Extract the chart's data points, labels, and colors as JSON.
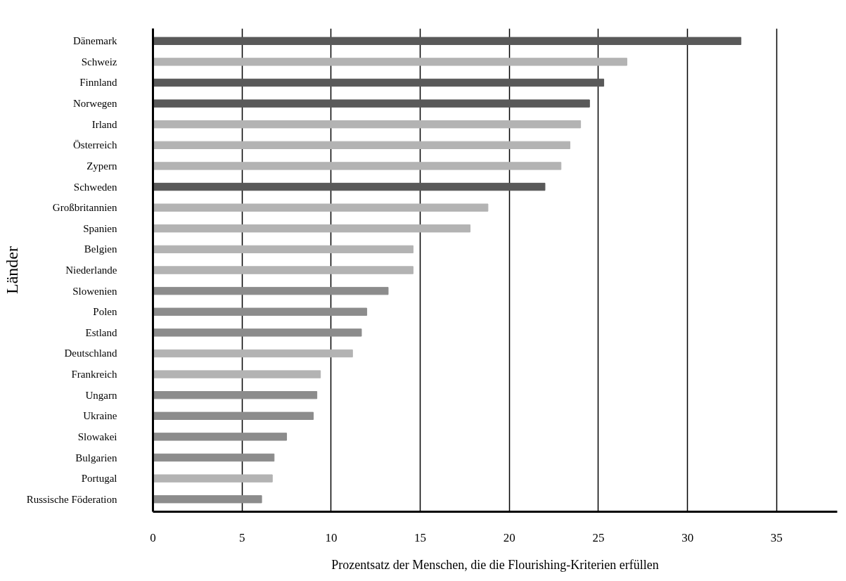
{
  "chart_data": {
    "type": "bar",
    "orientation": "horizontal",
    "xlabel": "Prozentsatz der Menschen, die die Flourishing-Kriterien erfüllen",
    "ylabel": "Länder",
    "categories": [
      "Dänemark",
      "Schweiz",
      "Finnland",
      "Norwegen",
      "Irland",
      "Österreich",
      "Zypern",
      "Schweden",
      "Großbritannien",
      "Spanien",
      "Belgien",
      "Niederlande",
      "Slowenien",
      "Polen",
      "Estland",
      "Deutschland",
      "Frankreich",
      "Ungarn",
      "Ukraine",
      "Slowakei",
      "Bulgarien",
      "Portugal",
      "Russische Föderation"
    ],
    "values": [
      33.0,
      26.6,
      25.3,
      24.5,
      24.0,
      23.4,
      22.9,
      22.0,
      18.8,
      17.8,
      14.6,
      14.6,
      13.2,
      12.0,
      11.7,
      11.2,
      9.4,
      9.2,
      9.0,
      7.5,
      6.8,
      6.7,
      6.1
    ],
    "colors": [
      "#595959",
      "#b3b3b3",
      "#595959",
      "#595959",
      "#b3b3b3",
      "#b3b3b3",
      "#b3b3b3",
      "#595959",
      "#b3b3b3",
      "#b3b3b3",
      "#b3b3b3",
      "#b3b3b3",
      "#8c8c8c",
      "#8c8c8c",
      "#8c8c8c",
      "#b3b3b3",
      "#b3b3b3",
      "#8c8c8c",
      "#8c8c8c",
      "#8c8c8c",
      "#8c8c8c",
      "#b3b3b3",
      "#8c8c8c"
    ],
    "xlim": [
      0,
      38.4
    ],
    "xticks": [
      0,
      5,
      10,
      15,
      20,
      25,
      30,
      35
    ],
    "grid": "x"
  }
}
